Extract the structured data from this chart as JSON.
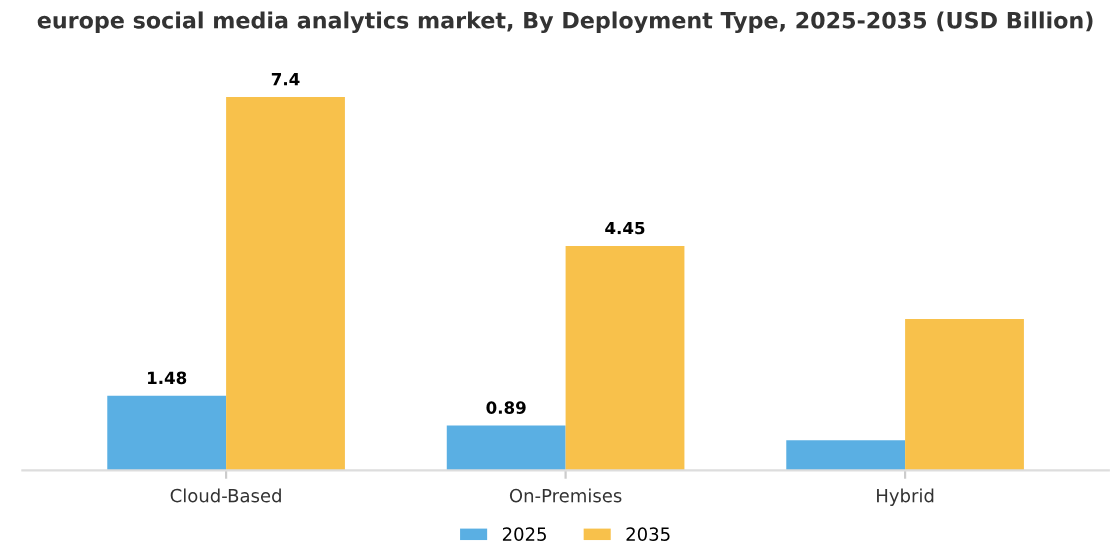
{
  "chart_data": {
    "type": "bar",
    "title": "europe social media analytics market, By Deployment Type, 2025-2035 (USD Billion)",
    "categories": [
      "Cloud-Based",
      "On-Premises",
      "Hybrid"
    ],
    "series": [
      {
        "name": "2025",
        "color": "#5aafe3",
        "values": [
          1.48,
          0.89,
          0.6
        ],
        "value_labels": [
          "1.48",
          "0.89",
          null
        ]
      },
      {
        "name": "2035",
        "color": "#f8c14b",
        "values": [
          7.4,
          4.45,
          3.0
        ],
        "value_labels": [
          "7.4",
          "4.45",
          null
        ]
      }
    ],
    "legend": "bottom",
    "grid": false,
    "tick_labels": "x"
  }
}
